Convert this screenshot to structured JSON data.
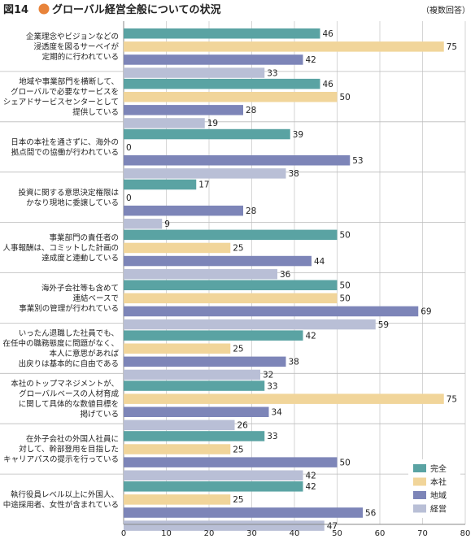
{
  "figure": {
    "number": "図14",
    "title": "グローバル経営全般についての状況",
    "note": "（複数回答）"
  },
  "colors": {
    "完全": "#5aa3a3",
    "本社": "#f1d59a",
    "地域": "#7d85b8",
    "経営": "#b9bfd6",
    "accent": "#e8833a"
  },
  "chart_data": {
    "type": "bar",
    "orientation": "horizontal",
    "xlim": [
      0,
      80
    ],
    "xticks": [
      0,
      10,
      20,
      30,
      40,
      50,
      60,
      70,
      80
    ],
    "grid": true,
    "legend_position": "bottom-right",
    "categories": [
      [
        "企業理念やビジョンなどの",
        "浸透度を図るサーベイが",
        "定期的に行われている"
      ],
      [
        "地域や事業部門を横断して、",
        "グローバルで必要なサービスを",
        "シェアドサービスセンターとして",
        "提供している"
      ],
      [
        "日本の本社を通さずに、海外の",
        "拠点間での協働が行われている"
      ],
      [
        "投資に関する意思決定権限は",
        "かなり現地に委譲している"
      ],
      [
        "事業部門の責任者の",
        "人事報酬は、コミットした計画の",
        "達成度と連動している"
      ],
      [
        "海外子会社等も含めて",
        "連結ベースで",
        "事業別の管理が行われている"
      ],
      [
        "いったん退職した社員でも、",
        "在任中の職務態度に問題がなく、",
        "本人に意思があれば",
        "出戻りは基本的に自由である"
      ],
      [
        "本社のトップマネジメントが、",
        "グローバルベースの人材育成",
        "に関して具体的な数値目標を",
        "掲げている"
      ],
      [
        "在外子会社の外国人社員に",
        "対して、幹部登用を目指した",
        "キャリアパスの提示を行っている"
      ],
      [
        "執行役員レベル以上に外国人、",
        "中途採用者、女性が含まれている"
      ]
    ],
    "series": [
      {
        "name": "完全",
        "values": [
          46,
          46,
          39,
          17,
          50,
          50,
          42,
          33,
          33,
          42
        ]
      },
      {
        "name": "本社",
        "values": [
          75,
          50,
          0,
          0,
          25,
          50,
          25,
          75,
          25,
          25
        ]
      },
      {
        "name": "地域",
        "values": [
          42,
          28,
          53,
          28,
          44,
          69,
          38,
          34,
          50,
          56
        ]
      },
      {
        "name": "経営",
        "values": [
          33,
          19,
          38,
          9,
          36,
          59,
          32,
          26,
          42,
          47
        ]
      }
    ]
  }
}
